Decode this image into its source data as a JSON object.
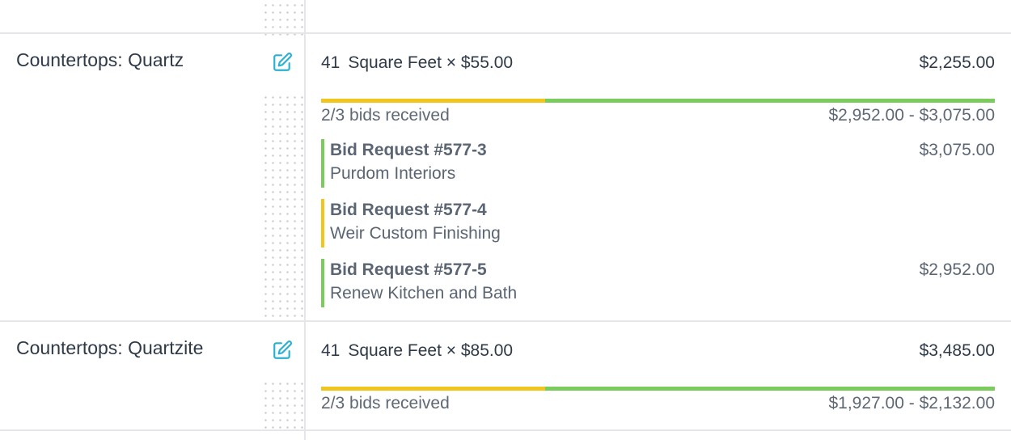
{
  "colors": {
    "accent": "#2bb0cf",
    "received": "#7acd5d",
    "pending": "#f1c51b",
    "border": "#e4e6ea"
  },
  "items": [
    {
      "name": "Countertops: Quartz",
      "quantity": "41",
      "unit_price": "Square Feet × $55.00",
      "total": "$2,255.00",
      "bids_received": "2/3 bids received",
      "bid_progress": 0.667,
      "bid_range": "$2,952.00 - $3,075.00",
      "bids": [
        {
          "title": "Bid Request #577-3",
          "vendor": "Purdom Interiors",
          "amount": "$3,075.00",
          "status": "received"
        },
        {
          "title": "Bid Request #577-4",
          "vendor": "Weir Custom Finishing",
          "amount": "",
          "status": "pending"
        },
        {
          "title": "Bid Request #577-5",
          "vendor": "Renew Kitchen and Bath",
          "amount": "$2,952.00",
          "status": "received"
        }
      ]
    },
    {
      "name": "Countertops: Quartzite",
      "quantity": "41",
      "unit_price": "Square Feet × $85.00",
      "total": "$3,485.00",
      "bids_received": "2/3 bids received",
      "bid_progress": 0.667,
      "bid_range": "$1,927.00 - $2,132.00"
    }
  ]
}
